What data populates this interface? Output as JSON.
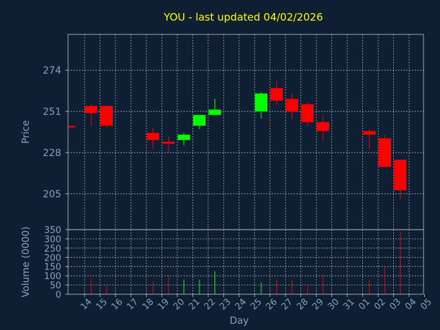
{
  "title": "YOU - last updated 04/02/2026",
  "chart_data": {
    "type": "candlestick",
    "title": "YOU - last updated 04/02/2026",
    "xlabel": "Day",
    "ylabel": "Price",
    "volume_label": "Volume (0000)",
    "price_range": [
      185,
      294
    ],
    "price_ticks": [
      205,
      228,
      251,
      274
    ],
    "volume_range": [
      0,
      350
    ],
    "volume_ticks": [
      0,
      50,
      100,
      150,
      200,
      250,
      300,
      350
    ],
    "x_tick_labels": [
      "14",
      "15",
      "16",
      "17",
      "18",
      "19",
      "20",
      "21",
      "22",
      "23",
      "24",
      "25",
      "26",
      "27",
      "28",
      "29",
      "30",
      "31",
      "01",
      "02",
      "03",
      "04",
      "05"
    ],
    "up_color": "#00ff00",
    "down_color": "#ff0000",
    "grid": true,
    "candles": [
      {
        "day": "14",
        "open": 243,
        "close": 242,
        "high": 243,
        "low": 242,
        "volume": 0
      },
      {
        "day": "15",
        "open": 254,
        "close": 250,
        "high": 255,
        "low": 243,
        "volume": 85
      },
      {
        "day": "16",
        "open": 254,
        "close": 243,
        "high": 254,
        "low": 242,
        "volume": 48
      },
      {
        "day": "19",
        "open": 239,
        "close": 235,
        "high": 242,
        "low": 230,
        "volume": 70
      },
      {
        "day": "20",
        "open": 234,
        "close": 233,
        "high": 237,
        "low": 228,
        "volume": 100
      },
      {
        "day": "21",
        "open": 235,
        "close": 238,
        "high": 239,
        "low": 232,
        "volume": 80
      },
      {
        "day": "22",
        "open": 243,
        "close": 249,
        "high": 249,
        "low": 241,
        "volume": 80
      },
      {
        "day": "23",
        "open": 249,
        "close": 252,
        "high": 258,
        "low": 249,
        "volume": 125
      },
      {
        "day": "26",
        "open": 251,
        "close": 261,
        "high": 262,
        "low": 247,
        "volume": 65
      },
      {
        "day": "27",
        "open": 264,
        "close": 257,
        "high": 268,
        "low": 255,
        "volume": 80
      },
      {
        "day": "28",
        "open": 258,
        "close": 251,
        "high": 261,
        "low": 247,
        "volume": 75
      },
      {
        "day": "29",
        "open": 255,
        "close": 245,
        "high": 256,
        "low": 243,
        "volume": 50
      },
      {
        "day": "30",
        "open": 245,
        "close": 240,
        "high": 249,
        "low": 235,
        "volume": 100
      },
      {
        "day": "02",
        "open": 240,
        "close": 238,
        "high": 241,
        "low": 230,
        "volume": 80
      },
      {
        "day": "03",
        "open": 236,
        "close": 220,
        "high": 238,
        "low": 220,
        "volume": 150
      },
      {
        "day": "04",
        "open": 224,
        "close": 207,
        "high": 224,
        "low": 202,
        "volume": 340
      }
    ]
  }
}
